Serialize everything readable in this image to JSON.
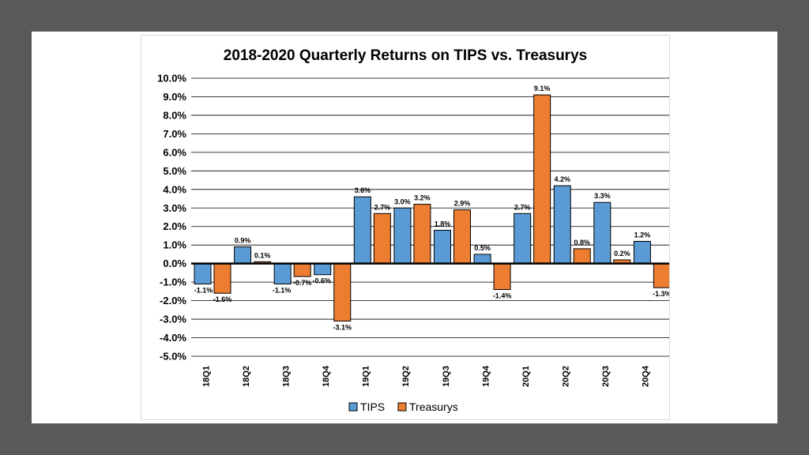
{
  "chart_data": {
    "type": "bar",
    "title": "2018-2020 Quarterly Returns on TIPS vs. Treasurys",
    "xlabel": "",
    "ylabel": "",
    "categories": [
      "18Q1",
      "18Q2",
      "18Q3",
      "18Q4",
      "19Q1",
      "19Q2",
      "19Q3",
      "19Q4",
      "20Q1",
      "20Q2",
      "20Q3",
      "20Q4"
    ],
    "series": [
      {
        "name": "TIPS",
        "color": "#5B9BD5",
        "values": [
          -1.1,
          0.9,
          -1.1,
          -0.6,
          3.6,
          3.0,
          1.8,
          0.5,
          2.7,
          4.2,
          3.3,
          1.2
        ],
        "labels": [
          "-1.1%",
          "0.9%",
          "-1.1%",
          "-0.6%",
          "3.6%",
          "3.0%",
          "1.8%",
          "0.5%",
          "2.7%",
          "4.2%",
          "3.3%",
          "1.2%"
        ]
      },
      {
        "name": "Treasurys",
        "color": "#ED7D31",
        "values": [
          -1.6,
          0.1,
          -0.7,
          -3.1,
          2.7,
          3.2,
          2.9,
          -1.4,
          9.1,
          0.8,
          0.2,
          -1.3
        ],
        "labels": [
          "-1.6%",
          "0.1%",
          "-0.7%",
          "-3.1%",
          "2.7%",
          "3.2%",
          "2.9%",
          "-1.4%",
          "9.1%",
          "0.8%",
          "0.2%",
          "-1.3%"
        ]
      }
    ],
    "ylim": [
      -5.0,
      10.0
    ],
    "ytick_step": 1.0,
    "ytick_labels": [
      "10.0%",
      "9.0%",
      "8.0%",
      "7.0%",
      "6.0%",
      "5.0%",
      "4.0%",
      "3.0%",
      "2.0%",
      "1.0%",
      "0.0%",
      "-1.0%",
      "-2.0%",
      "-3.0%",
      "-4.0%",
      "-5.0%"
    ],
    "grid": true,
    "legend_position": "bottom"
  }
}
